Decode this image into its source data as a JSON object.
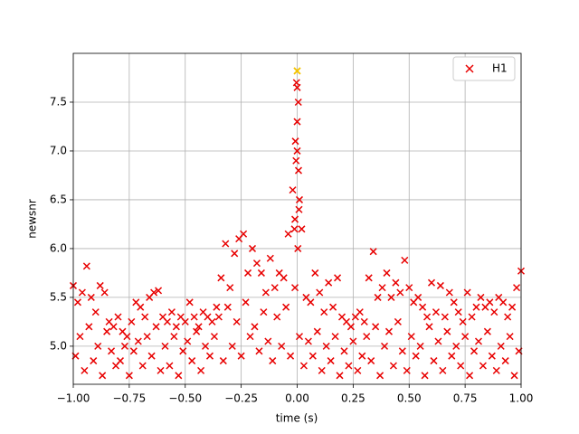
{
  "chart_data": {
    "type": "scatter",
    "xlabel": "time (s)",
    "ylabel": "newsnr",
    "xlim": [
      -1,
      1
    ],
    "ylim": [
      4.61,
      8.0
    ],
    "xticks": [
      {
        "value": -1,
        "label": "−1.00"
      },
      {
        "value": -0.75,
        "label": "−0.75"
      },
      {
        "value": -0.5,
        "label": "−0.50"
      },
      {
        "value": -0.25,
        "label": "−0.25"
      },
      {
        "value": 0,
        "label": "0.00"
      },
      {
        "value": 0.25,
        "label": "0.25"
      },
      {
        "value": 0.5,
        "label": "0.50"
      },
      {
        "value": 0.75,
        "label": "0.75"
      },
      {
        "value": 1,
        "label": "1.00"
      }
    ],
    "yticks": [
      {
        "value": 5,
        "label": "5.0"
      },
      {
        "value": 5.5,
        "label": "5.5"
      },
      {
        "value": 6,
        "label": "6.0"
      },
      {
        "value": 6.5,
        "label": "6.5"
      },
      {
        "value": 7,
        "label": "7.0"
      },
      {
        "value": 7.5,
        "label": "7.5"
      }
    ],
    "grid": true,
    "legend": "upper right",
    "series": [
      {
        "name": "H1",
        "color": "#e80000",
        "x": [
          -1,
          -0.98,
          -0.96,
          -0.94,
          -0.92,
          -0.9,
          -0.88,
          -0.86,
          -0.84,
          -0.82,
          -0.8,
          -0.78,
          -0.76,
          -0.74,
          -0.72,
          -0.7,
          -0.68,
          -0.66,
          -0.64,
          -0.62,
          -0.6,
          -0.58,
          -0.56,
          -0.54,
          -0.52,
          -0.5,
          -0.48,
          -0.46,
          -0.44,
          -0.42,
          -0.4,
          -0.38,
          -0.36,
          -0.34,
          -0.32,
          -0.3,
          -0.28,
          -0.26,
          -0.24,
          -0.22,
          -0.2,
          -0.18,
          -0.16,
          -0.14,
          -0.12,
          -0.1,
          -0.08,
          -0.06,
          -0.04,
          -0.02,
          0,
          0.02,
          0.04,
          0.06,
          0.08,
          0.1,
          0.12,
          0.14,
          0.16,
          0.18,
          0.2,
          0.22,
          0.24,
          0.26,
          0.28,
          0.3,
          0.32,
          0.34,
          0.36,
          0.38,
          0.4,
          0.42,
          0.44,
          0.46,
          0.48,
          0.5,
          0.52,
          0.54,
          0.56,
          0.58,
          0.6,
          0.62,
          0.64,
          0.66,
          0.68,
          0.7,
          0.72,
          0.74,
          0.76,
          0.78,
          0.8,
          0.82,
          0.84,
          0.86,
          0.88,
          0.9,
          0.92,
          0.94,
          0.96,
          0.98,
          1,
          -0.99,
          -0.97,
          -0.95,
          -0.93,
          -0.91,
          -0.89,
          -0.87,
          -0.85,
          -0.83,
          -0.81,
          -0.79,
          -0.77,
          -0.75,
          -0.73,
          -0.71,
          -0.69,
          -0.67,
          -0.65,
          -0.63,
          -0.61,
          -0.59,
          -0.57,
          -0.55,
          -0.53,
          -0.51,
          -0.49,
          -0.47,
          -0.45,
          -0.43,
          -0.41,
          -0.39,
          -0.37,
          -0.35,
          -0.33,
          -0.31,
          -0.29,
          -0.27,
          -0.25,
          -0.23,
          -0.21,
          -0.19,
          -0.17,
          -0.15,
          -0.13,
          -0.11,
          -0.09,
          -0.07,
          -0.05,
          -0.03,
          -0.01,
          0.01,
          0.03,
          0.05,
          0.07,
          0.09,
          0.11,
          0.13,
          0.15,
          0.17,
          0.19,
          0.21,
          0.23,
          0.25,
          0.27,
          0.29,
          0.31,
          0.33,
          0.35,
          0.37,
          0.39,
          0.41,
          0.43,
          0.45,
          0.47,
          0.49,
          0.51,
          0.53,
          0.55,
          0.57,
          0.59,
          0.61,
          0.63,
          0.65,
          0.67,
          0.69,
          0.71,
          0.73,
          0.75,
          0.77,
          0.79,
          0.81,
          0.83,
          0.85,
          0.87,
          0.89,
          0.91,
          0.93,
          0.95,
          0.97,
          0.99,
          -0.01,
          -0.005,
          0,
          0.005,
          0.01,
          -0.008,
          0.003,
          -0.003,
          0.006,
          -0.012,
          0.008,
          0
        ],
        "y": [
          5.62,
          5.45,
          5.55,
          5.82,
          5.5,
          5.35,
          5.62,
          5.55,
          5.25,
          5.2,
          5.3,
          5.15,
          5.1,
          5.25,
          5.45,
          5.4,
          5.3,
          5.5,
          5.55,
          5.57,
          5.3,
          5.25,
          5.35,
          5.2,
          5.3,
          5.25,
          5.45,
          5.3,
          5.2,
          5.35,
          5.3,
          5.25,
          5.4,
          5.7,
          6.05,
          5.6,
          5.95,
          6.1,
          6.15,
          5.75,
          6.0,
          5.85,
          5.75,
          5.55,
          5.9,
          5.6,
          5.75,
          5.7,
          6.15,
          6.6,
          7.65,
          6.2,
          5.5,
          5.45,
          5.75,
          5.55,
          5.35,
          5.65,
          5.4,
          5.7,
          5.3,
          5.25,
          5.2,
          5.3,
          5.35,
          5.25,
          5.7,
          5.97,
          5.5,
          5.6,
          5.75,
          5.5,
          5.65,
          5.55,
          5.88,
          5.6,
          5.45,
          5.5,
          5.4,
          5.3,
          5.65,
          5.35,
          5.62,
          5.3,
          5.55,
          5.45,
          5.35,
          5.25,
          5.55,
          5.3,
          5.4,
          5.5,
          5.4,
          5.45,
          5.35,
          5.5,
          5.45,
          5.3,
          5.4,
          5.6,
          5.77,
          4.9,
          5.1,
          4.75,
          5.2,
          4.85,
          5.0,
          4.7,
          5.15,
          4.95,
          4.8,
          4.85,
          5.0,
          4.7,
          4.95,
          5.05,
          4.8,
          5.1,
          4.9,
          5.2,
          4.75,
          5.0,
          4.8,
          5.1,
          4.7,
          4.95,
          5.05,
          4.85,
          5.15,
          4.75,
          5.0,
          4.9,
          5.1,
          5.3,
          4.85,
          5.4,
          5.0,
          5.25,
          4.9,
          5.45,
          5.1,
          5.2,
          4.95,
          5.35,
          5.05,
          4.85,
          5.3,
          5.0,
          5.4,
          4.9,
          5.6,
          5.1,
          4.8,
          5.05,
          4.9,
          5.15,
          4.75,
          5.0,
          4.85,
          5.1,
          4.7,
          4.95,
          4.8,
          5.05,
          4.75,
          4.9,
          5.1,
          4.85,
          5.2,
          4.7,
          5.0,
          5.15,
          4.8,
          5.25,
          4.95,
          4.75,
          5.1,
          4.9,
          5.0,
          4.7,
          5.2,
          4.85,
          5.05,
          4.75,
          5.15,
          4.9,
          5.0,
          4.8,
          5.1,
          4.7,
          4.95,
          5.05,
          4.8,
          5.15,
          4.9,
          4.75,
          5.0,
          4.85,
          5.1,
          4.7,
          4.95,
          6.3,
          6.9,
          7.3,
          7.5,
          6.5,
          7.1,
          6.0,
          7.7,
          6.8,
          6.2,
          6.4,
          7.0
        ]
      }
    ],
    "highlight": {
      "x": 0,
      "y": 7.82,
      "color": "#f5c400"
    }
  }
}
